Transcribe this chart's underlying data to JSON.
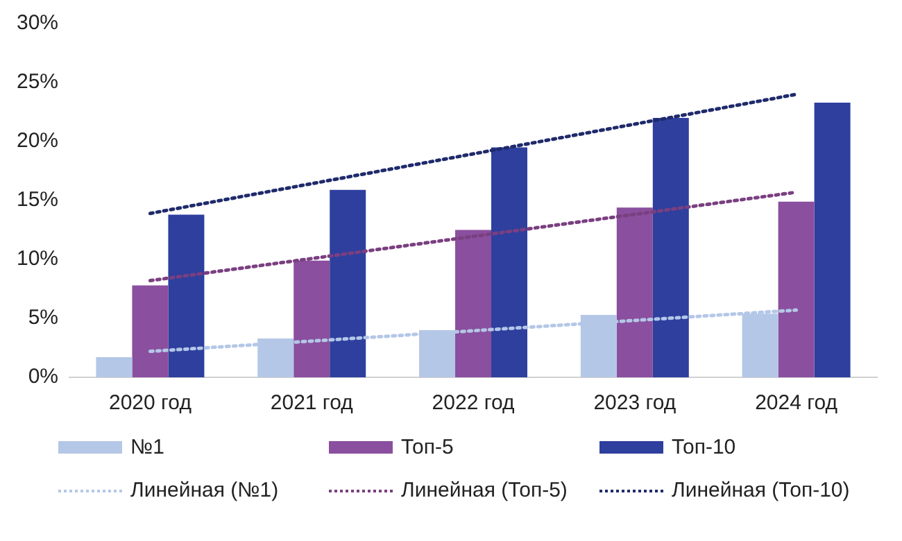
{
  "chart_data": {
    "type": "bar",
    "categories": [
      "2020 год",
      "2021 год",
      "2022 год",
      "2023 год",
      "2024 год"
    ],
    "series": [
      {
        "name": "№1",
        "color": "#b4c7e7",
        "values": [
          1.7,
          3.3,
          4.0,
          5.3,
          5.4
        ]
      },
      {
        "name": "Топ-5",
        "color": "#8a4f9e",
        "values": [
          7.8,
          9.9,
          12.5,
          14.4,
          14.9
        ]
      },
      {
        "name": "Топ-10",
        "color": "#2e3f9e",
        "values": [
          13.8,
          15.9,
          19.5,
          22.0,
          23.3
        ]
      },
      {
        "name": "Линейная (№1)",
        "type": "line",
        "line_style": "dotted",
        "color": "#b4c7e7",
        "values": [
          2.2,
          null,
          null,
          null,
          5.7
        ]
      },
      {
        "name": "Линейная (Топ-5)",
        "type": "line",
        "line_style": "dotted",
        "color": "#7a3f80",
        "values": [
          8.2,
          null,
          null,
          null,
          15.7
        ]
      },
      {
        "name": "Линейная (Топ-10)",
        "type": "line",
        "line_style": "dotted",
        "color": "#1f2a6b",
        "values": [
          13.9,
          null,
          null,
          null,
          24.0
        ]
      }
    ],
    "ylim": [
      0,
      30
    ],
    "yticks": [
      {
        "value": 0,
        "label": "0%"
      },
      {
        "value": 5,
        "label": "5%"
      },
      {
        "value": 10,
        "label": "10%"
      },
      {
        "value": 15,
        "label": "15%"
      },
      {
        "value": 20,
        "label": "20%"
      },
      {
        "value": 25,
        "label": "25%"
      },
      {
        "value": 30,
        "label": "30%"
      }
    ],
    "grid": false,
    "legend": "bottom",
    "marker": "none"
  }
}
